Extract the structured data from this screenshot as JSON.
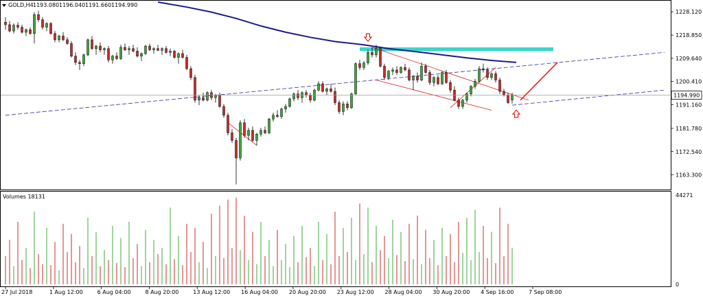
{
  "header": {
    "symbol": "GOLD,H4",
    "open": "1193.080",
    "high": "1196.040",
    "low": "1191.660",
    "close": "1194.990",
    "volumes_label": "Volumes 18131"
  },
  "colors": {
    "bull": "#3aa83a",
    "bear": "#cc2a2a",
    "ma": "#1a1a8c",
    "zone": "#3ad6c8",
    "trend": "#2a2a9a",
    "annotation": "#e0201a",
    "current_price_bg": "#ffffff"
  },
  "chart_data": [
    {
      "type": "candlestick",
      "title": "GOLD,H4",
      "ylim": [
        1158.0,
        1232.0
      ],
      "y_ticks": [
        "1228.120",
        "1218.850",
        "1209.640",
        "1200.410",
        "1191.160",
        "1181.780",
        "1172.540",
        "1163.300"
      ],
      "x_ticks": [
        "27 Jul 2018",
        "1 Aug 12:00",
        "6 Aug 04:00",
        "8 Aug 20:00",
        "13 Aug 12:00",
        "16 Aug 04:00",
        "20 Aug 20:00",
        "23 Aug 12:00",
        "28 Aug 04:00",
        "30 Aug 20:00",
        "4 Sep 16:00",
        "7 Sep 08:00"
      ],
      "current_price": "1194.990",
      "moving_average": [
        {
          "i": 37,
          "v": 1232.0
        },
        {
          "i": 44,
          "v": 1230.0
        },
        {
          "i": 50,
          "v": 1228.0
        },
        {
          "i": 56,
          "v": 1225.5
        },
        {
          "i": 62,
          "v": 1222.5
        },
        {
          "i": 68,
          "v": 1220.0
        },
        {
          "i": 74,
          "v": 1218.0
        },
        {
          "i": 80,
          "v": 1216.3
        },
        {
          "i": 87,
          "v": 1215.0
        },
        {
          "i": 93,
          "v": 1213.5
        },
        {
          "i": 100,
          "v": 1212.2
        },
        {
          "i": 106,
          "v": 1211.0
        },
        {
          "i": 112,
          "v": 1209.8
        },
        {
          "i": 118,
          "v": 1208.8
        },
        {
          "i": 124,
          "v": 1208.0
        }
      ],
      "resistance_zone": {
        "from": 86,
        "to": 133,
        "low": 1212.5,
        "high": 1214.0
      },
      "trend_lines": [
        {
          "from": {
            "i": 0,
            "v": 1187.0
          },
          "to": {
            "i": 160,
            "v": 1212.0
          }
        },
        {
          "from": {
            "i": 123,
            "v": 1191.0
          },
          "to": {
            "i": 160,
            "v": 1197.0
          }
        }
      ],
      "channel_lines": [
        {
          "from": {
            "i": 89,
            "v": 1214.0
          },
          "to": {
            "i": 127,
            "v": 1193.0
          }
        },
        {
          "from": {
            "i": 90,
            "v": 1201.0
          },
          "to": {
            "i": 118,
            "v": 1189.0
          }
        },
        {
          "from": {
            "i": 108,
            "v": 1190.0
          },
          "to": {
            "i": 119,
            "v": 1206.0
          }
        },
        {
          "from": {
            "i": 54,
            "v": 1184.0
          },
          "to": {
            "i": 61,
            "v": 1175.0
          }
        }
      ],
      "arrow_line": {
        "from": {
          "i": 125,
          "v": 1193.0
        },
        "to": {
          "i": 134,
          "v": 1208.0
        }
      },
      "arrow_markers": [
        {
          "i": 88,
          "v": 1217.5,
          "dir": "down"
        },
        {
          "i": 124,
          "v": 1188.0,
          "dir": "up"
        }
      ],
      "candles": [
        {
          "o": 1224.0,
          "h": 1226.0,
          "l": 1221.0,
          "c": 1223.0
        },
        {
          "o": 1223.0,
          "h": 1224.5,
          "l": 1220.0,
          "c": 1220.5
        },
        {
          "o": 1220.5,
          "h": 1223.5,
          "l": 1219.5,
          "c": 1222.8
        },
        {
          "o": 1222.8,
          "h": 1224.0,
          "l": 1221.0,
          "c": 1222.0
        },
        {
          "o": 1222.0,
          "h": 1223.0,
          "l": 1219.5,
          "c": 1220.0
        },
        {
          "o": 1220.0,
          "h": 1221.5,
          "l": 1218.5,
          "c": 1221.0
        },
        {
          "o": 1221.0,
          "h": 1222.0,
          "l": 1219.0,
          "c": 1219.5
        },
        {
          "o": 1219.5,
          "h": 1228.0,
          "l": 1215.5,
          "c": 1227.0
        },
        {
          "o": 1227.0,
          "h": 1228.5,
          "l": 1224.0,
          "c": 1225.0
        },
        {
          "o": 1225.0,
          "h": 1226.0,
          "l": 1221.0,
          "c": 1222.0
        },
        {
          "o": 1222.0,
          "h": 1224.0,
          "l": 1220.5,
          "c": 1223.5
        },
        {
          "o": 1223.5,
          "h": 1224.0,
          "l": 1219.0,
          "c": 1219.5
        },
        {
          "o": 1219.5,
          "h": 1220.5,
          "l": 1216.0,
          "c": 1217.0
        },
        {
          "o": 1217.0,
          "h": 1219.0,
          "l": 1216.0,
          "c": 1218.5
        },
        {
          "o": 1218.5,
          "h": 1220.0,
          "l": 1216.5,
          "c": 1217.0
        },
        {
          "o": 1217.0,
          "h": 1218.0,
          "l": 1215.0,
          "c": 1215.5
        },
        {
          "o": 1215.5,
          "h": 1216.5,
          "l": 1210.0,
          "c": 1210.5
        },
        {
          "o": 1210.5,
          "h": 1212.0,
          "l": 1207.0,
          "c": 1208.0
        },
        {
          "o": 1208.0,
          "h": 1209.0,
          "l": 1205.0,
          "c": 1207.5
        },
        {
          "o": 1207.5,
          "h": 1211.5,
          "l": 1206.5,
          "c": 1211.0
        },
        {
          "o": 1211.0,
          "h": 1217.5,
          "l": 1210.5,
          "c": 1217.0
        },
        {
          "o": 1217.0,
          "h": 1218.5,
          "l": 1213.0,
          "c": 1213.5
        },
        {
          "o": 1213.5,
          "h": 1215.0,
          "l": 1211.0,
          "c": 1214.5
        },
        {
          "o": 1214.5,
          "h": 1216.0,
          "l": 1212.0,
          "c": 1213.0
        },
        {
          "o": 1213.0,
          "h": 1214.0,
          "l": 1211.0,
          "c": 1213.5
        },
        {
          "o": 1213.5,
          "h": 1214.5,
          "l": 1208.0,
          "c": 1209.0
        },
        {
          "o": 1209.0,
          "h": 1211.0,
          "l": 1207.5,
          "c": 1210.5
        },
        {
          "o": 1210.5,
          "h": 1212.0,
          "l": 1209.0,
          "c": 1209.5
        },
        {
          "o": 1209.5,
          "h": 1215.0,
          "l": 1209.0,
          "c": 1214.0
        },
        {
          "o": 1214.0,
          "h": 1215.5,
          "l": 1212.5,
          "c": 1213.0
        },
        {
          "o": 1213.0,
          "h": 1214.5,
          "l": 1211.0,
          "c": 1213.5
        },
        {
          "o": 1213.5,
          "h": 1215.0,
          "l": 1212.0,
          "c": 1212.5
        },
        {
          "o": 1212.5,
          "h": 1214.0,
          "l": 1210.0,
          "c": 1210.5
        },
        {
          "o": 1210.5,
          "h": 1212.0,
          "l": 1208.5,
          "c": 1211.5
        },
        {
          "o": 1211.5,
          "h": 1215.0,
          "l": 1211.0,
          "c": 1214.5
        },
        {
          "o": 1214.5,
          "h": 1215.5,
          "l": 1212.5,
          "c": 1213.0
        },
        {
          "o": 1213.0,
          "h": 1214.0,
          "l": 1211.5,
          "c": 1213.5
        },
        {
          "o": 1213.5,
          "h": 1215.0,
          "l": 1212.5,
          "c": 1212.8
        },
        {
          "o": 1212.8,
          "h": 1214.0,
          "l": 1211.0,
          "c": 1213.5
        },
        {
          "o": 1213.5,
          "h": 1214.5,
          "l": 1211.5,
          "c": 1212.0
        },
        {
          "o": 1212.0,
          "h": 1213.5,
          "l": 1210.5,
          "c": 1212.5
        },
        {
          "o": 1212.5,
          "h": 1213.0,
          "l": 1209.5,
          "c": 1210.0
        },
        {
          "o": 1210.0,
          "h": 1212.0,
          "l": 1207.5,
          "c": 1211.5
        },
        {
          "o": 1211.5,
          "h": 1213.0,
          "l": 1209.5,
          "c": 1210.0
        },
        {
          "o": 1210.0,
          "h": 1211.0,
          "l": 1205.0,
          "c": 1205.5
        },
        {
          "o": 1205.5,
          "h": 1206.5,
          "l": 1201.0,
          "c": 1202.0
        },
        {
          "o": 1202.0,
          "h": 1203.0,
          "l": 1192.0,
          "c": 1193.0
        },
        {
          "o": 1193.0,
          "h": 1195.0,
          "l": 1191.0,
          "c": 1194.0
        },
        {
          "o": 1194.0,
          "h": 1196.0,
          "l": 1192.5,
          "c": 1193.0
        },
        {
          "o": 1193.0,
          "h": 1196.5,
          "l": 1192.5,
          "c": 1196.0
        },
        {
          "o": 1196.0,
          "h": 1197.0,
          "l": 1193.0,
          "c": 1194.0
        },
        {
          "o": 1194.0,
          "h": 1195.5,
          "l": 1192.0,
          "c": 1195.0
        },
        {
          "o": 1195.0,
          "h": 1196.0,
          "l": 1190.0,
          "c": 1190.5
        },
        {
          "o": 1190.5,
          "h": 1191.5,
          "l": 1186.0,
          "c": 1187.0
        },
        {
          "o": 1187.0,
          "h": 1188.0,
          "l": 1179.0,
          "c": 1180.0
        },
        {
          "o": 1180.0,
          "h": 1181.5,
          "l": 1176.0,
          "c": 1177.0
        },
        {
          "o": 1177.0,
          "h": 1178.0,
          "l": 1159.5,
          "c": 1170.0
        },
        {
          "o": 1170.0,
          "h": 1185.0,
          "l": 1169.0,
          "c": 1184.0
        },
        {
          "o": 1184.0,
          "h": 1185.5,
          "l": 1178.0,
          "c": 1179.0
        },
        {
          "o": 1179.0,
          "h": 1182.0,
          "l": 1177.0,
          "c": 1181.0
        },
        {
          "o": 1181.0,
          "h": 1182.5,
          "l": 1176.5,
          "c": 1177.0
        },
        {
          "o": 1177.0,
          "h": 1180.0,
          "l": 1175.0,
          "c": 1179.5
        },
        {
          "o": 1179.5,
          "h": 1182.0,
          "l": 1178.5,
          "c": 1181.0
        },
        {
          "o": 1181.0,
          "h": 1182.5,
          "l": 1179.5,
          "c": 1180.0
        },
        {
          "o": 1180.0,
          "h": 1186.0,
          "l": 1179.5,
          "c": 1185.5
        },
        {
          "o": 1185.5,
          "h": 1188.0,
          "l": 1184.5,
          "c": 1187.0
        },
        {
          "o": 1187.0,
          "h": 1189.0,
          "l": 1186.0,
          "c": 1186.5
        },
        {
          "o": 1186.5,
          "h": 1190.0,
          "l": 1185.5,
          "c": 1189.5
        },
        {
          "o": 1189.5,
          "h": 1191.5,
          "l": 1188.0,
          "c": 1190.5
        },
        {
          "o": 1190.5,
          "h": 1194.0,
          "l": 1190.0,
          "c": 1193.5
        },
        {
          "o": 1193.5,
          "h": 1196.0,
          "l": 1192.5,
          "c": 1195.5
        },
        {
          "o": 1195.5,
          "h": 1197.0,
          "l": 1193.0,
          "c": 1194.0
        },
        {
          "o": 1194.0,
          "h": 1196.5,
          "l": 1192.0,
          "c": 1196.0
        },
        {
          "o": 1196.0,
          "h": 1197.0,
          "l": 1194.0,
          "c": 1195.0
        },
        {
          "o": 1195.0,
          "h": 1196.0,
          "l": 1192.0,
          "c": 1193.0
        },
        {
          "o": 1193.0,
          "h": 1197.5,
          "l": 1192.5,
          "c": 1197.0
        },
        {
          "o": 1197.0,
          "h": 1200.5,
          "l": 1196.5,
          "c": 1199.5
        },
        {
          "o": 1199.5,
          "h": 1200.5,
          "l": 1196.0,
          "c": 1196.5
        },
        {
          "o": 1196.5,
          "h": 1198.0,
          "l": 1195.0,
          "c": 1197.5
        },
        {
          "o": 1197.5,
          "h": 1199.5,
          "l": 1196.0,
          "c": 1196.5
        },
        {
          "o": 1196.5,
          "h": 1198.0,
          "l": 1191.0,
          "c": 1192.0
        },
        {
          "o": 1192.0,
          "h": 1193.0,
          "l": 1187.5,
          "c": 1188.5
        },
        {
          "o": 1188.5,
          "h": 1192.5,
          "l": 1187.0,
          "c": 1191.5
        },
        {
          "o": 1191.5,
          "h": 1192.5,
          "l": 1189.0,
          "c": 1190.0
        },
        {
          "o": 1190.0,
          "h": 1196.0,
          "l": 1189.5,
          "c": 1195.5
        },
        {
          "o": 1195.5,
          "h": 1208.0,
          "l": 1195.0,
          "c": 1207.5
        },
        {
          "o": 1207.5,
          "h": 1209.0,
          "l": 1205.0,
          "c": 1206.0
        },
        {
          "o": 1206.0,
          "h": 1208.5,
          "l": 1205.0,
          "c": 1207.8
        },
        {
          "o": 1207.8,
          "h": 1213.0,
          "l": 1207.0,
          "c": 1212.0
        },
        {
          "o": 1212.0,
          "h": 1214.0,
          "l": 1210.0,
          "c": 1211.0
        },
        {
          "o": 1211.0,
          "h": 1215.0,
          "l": 1210.0,
          "c": 1213.5
        },
        {
          "o": 1213.5,
          "h": 1214.0,
          "l": 1206.0,
          "c": 1206.5
        },
        {
          "o": 1206.5,
          "h": 1207.5,
          "l": 1201.0,
          "c": 1202.0
        },
        {
          "o": 1202.0,
          "h": 1205.0,
          "l": 1201.0,
          "c": 1204.5
        },
        {
          "o": 1204.5,
          "h": 1206.0,
          "l": 1203.0,
          "c": 1205.0
        },
        {
          "o": 1205.0,
          "h": 1206.5,
          "l": 1203.0,
          "c": 1204.0
        },
        {
          "o": 1204.0,
          "h": 1206.5,
          "l": 1203.5,
          "c": 1206.0
        },
        {
          "o": 1206.0,
          "h": 1207.5,
          "l": 1204.5,
          "c": 1205.0
        },
        {
          "o": 1205.0,
          "h": 1206.0,
          "l": 1200.5,
          "c": 1201.0
        },
        {
          "o": 1201.0,
          "h": 1203.0,
          "l": 1197.0,
          "c": 1202.5
        },
        {
          "o": 1202.5,
          "h": 1204.0,
          "l": 1200.0,
          "c": 1201.0
        },
        {
          "o": 1201.0,
          "h": 1208.0,
          "l": 1200.5,
          "c": 1206.5
        },
        {
          "o": 1206.5,
          "h": 1207.5,
          "l": 1203.5,
          "c": 1204.0
        },
        {
          "o": 1204.0,
          "h": 1205.0,
          "l": 1199.0,
          "c": 1200.0
        },
        {
          "o": 1200.0,
          "h": 1202.5,
          "l": 1198.5,
          "c": 1202.0
        },
        {
          "o": 1202.0,
          "h": 1203.0,
          "l": 1199.0,
          "c": 1199.5
        },
        {
          "o": 1199.5,
          "h": 1204.5,
          "l": 1199.0,
          "c": 1204.0
        },
        {
          "o": 1204.0,
          "h": 1205.0,
          "l": 1199.5,
          "c": 1200.0
        },
        {
          "o": 1200.0,
          "h": 1201.0,
          "l": 1196.0,
          "c": 1197.0
        },
        {
          "o": 1197.0,
          "h": 1198.5,
          "l": 1192.5,
          "c": 1193.0
        },
        {
          "o": 1193.0,
          "h": 1194.0,
          "l": 1189.5,
          "c": 1190.5
        },
        {
          "o": 1190.5,
          "h": 1193.5,
          "l": 1189.5,
          "c": 1193.0
        },
        {
          "o": 1193.0,
          "h": 1196.0,
          "l": 1192.0,
          "c": 1195.5
        },
        {
          "o": 1195.5,
          "h": 1199.0,
          "l": 1194.5,
          "c": 1198.5
        },
        {
          "o": 1198.5,
          "h": 1201.5,
          "l": 1197.5,
          "c": 1200.5
        },
        {
          "o": 1200.5,
          "h": 1206.5,
          "l": 1200.0,
          "c": 1205.5
        },
        {
          "o": 1205.5,
          "h": 1207.5,
          "l": 1204.0,
          "c": 1205.0
        },
        {
          "o": 1205.0,
          "h": 1206.0,
          "l": 1201.0,
          "c": 1202.0
        },
        {
          "o": 1202.0,
          "h": 1204.0,
          "l": 1201.0,
          "c": 1203.5
        },
        {
          "o": 1203.5,
          "h": 1204.5,
          "l": 1200.0,
          "c": 1201.0
        },
        {
          "o": 1201.0,
          "h": 1202.0,
          "l": 1195.5,
          "c": 1196.5
        },
        {
          "o": 1196.5,
          "h": 1197.5,
          "l": 1194.5,
          "c": 1195.0
        },
        {
          "o": 1195.0,
          "h": 1196.0,
          "l": 1191.5,
          "c": 1192.0
        },
        {
          "o": 1193.1,
          "h": 1196.0,
          "l": 1191.7,
          "c": 1195.0
        }
      ]
    },
    {
      "type": "bar",
      "title": "Volumes 18131",
      "ylim": [
        0,
        44271
      ],
      "y_ticks": [
        "44271",
        "0"
      ],
      "volumes": [
        14000,
        22000,
        9000,
        31000,
        12000,
        18000,
        8000,
        36000,
        15000,
        10000,
        28000,
        9500,
        21000,
        7000,
        30000,
        16000,
        25000,
        11000,
        19000,
        8000,
        33000,
        14000,
        26000,
        9000,
        17000,
        12000,
        29000,
        10500,
        23000,
        8500,
        31000,
        13000,
        20000,
        9000,
        27000,
        11000,
        22000,
        15000,
        18000,
        10000,
        38000,
        12500,
        24000,
        9500,
        30000,
        16000,
        28000,
        11000,
        21000,
        8000,
        35000,
        14000,
        39000,
        13000,
        42000,
        18000,
        43000,
        17000,
        34000,
        12000,
        26000,
        10000,
        31000,
        14000,
        22000,
        9000,
        27000,
        12000,
        20000,
        8500,
        24000,
        11000,
        29000,
        13500,
        18000,
        9000,
        31000,
        12000,
        25000,
        10000,
        36000,
        14000,
        28000,
        16000,
        33000,
        12000,
        40000,
        15000,
        38000,
        11000,
        29000,
        17000,
        24000,
        13000,
        32000,
        14500,
        26000,
        11500,
        30000,
        12500,
        34000,
        10000,
        27000,
        13000,
        22000,
        9500,
        28000,
        14000,
        25000,
        11000,
        31000,
        15500,
        33000,
        12000,
        37000,
        16000,
        29000,
        13000,
        26000,
        10500,
        38000,
        14000,
        30000,
        18131
      ]
    }
  ]
}
